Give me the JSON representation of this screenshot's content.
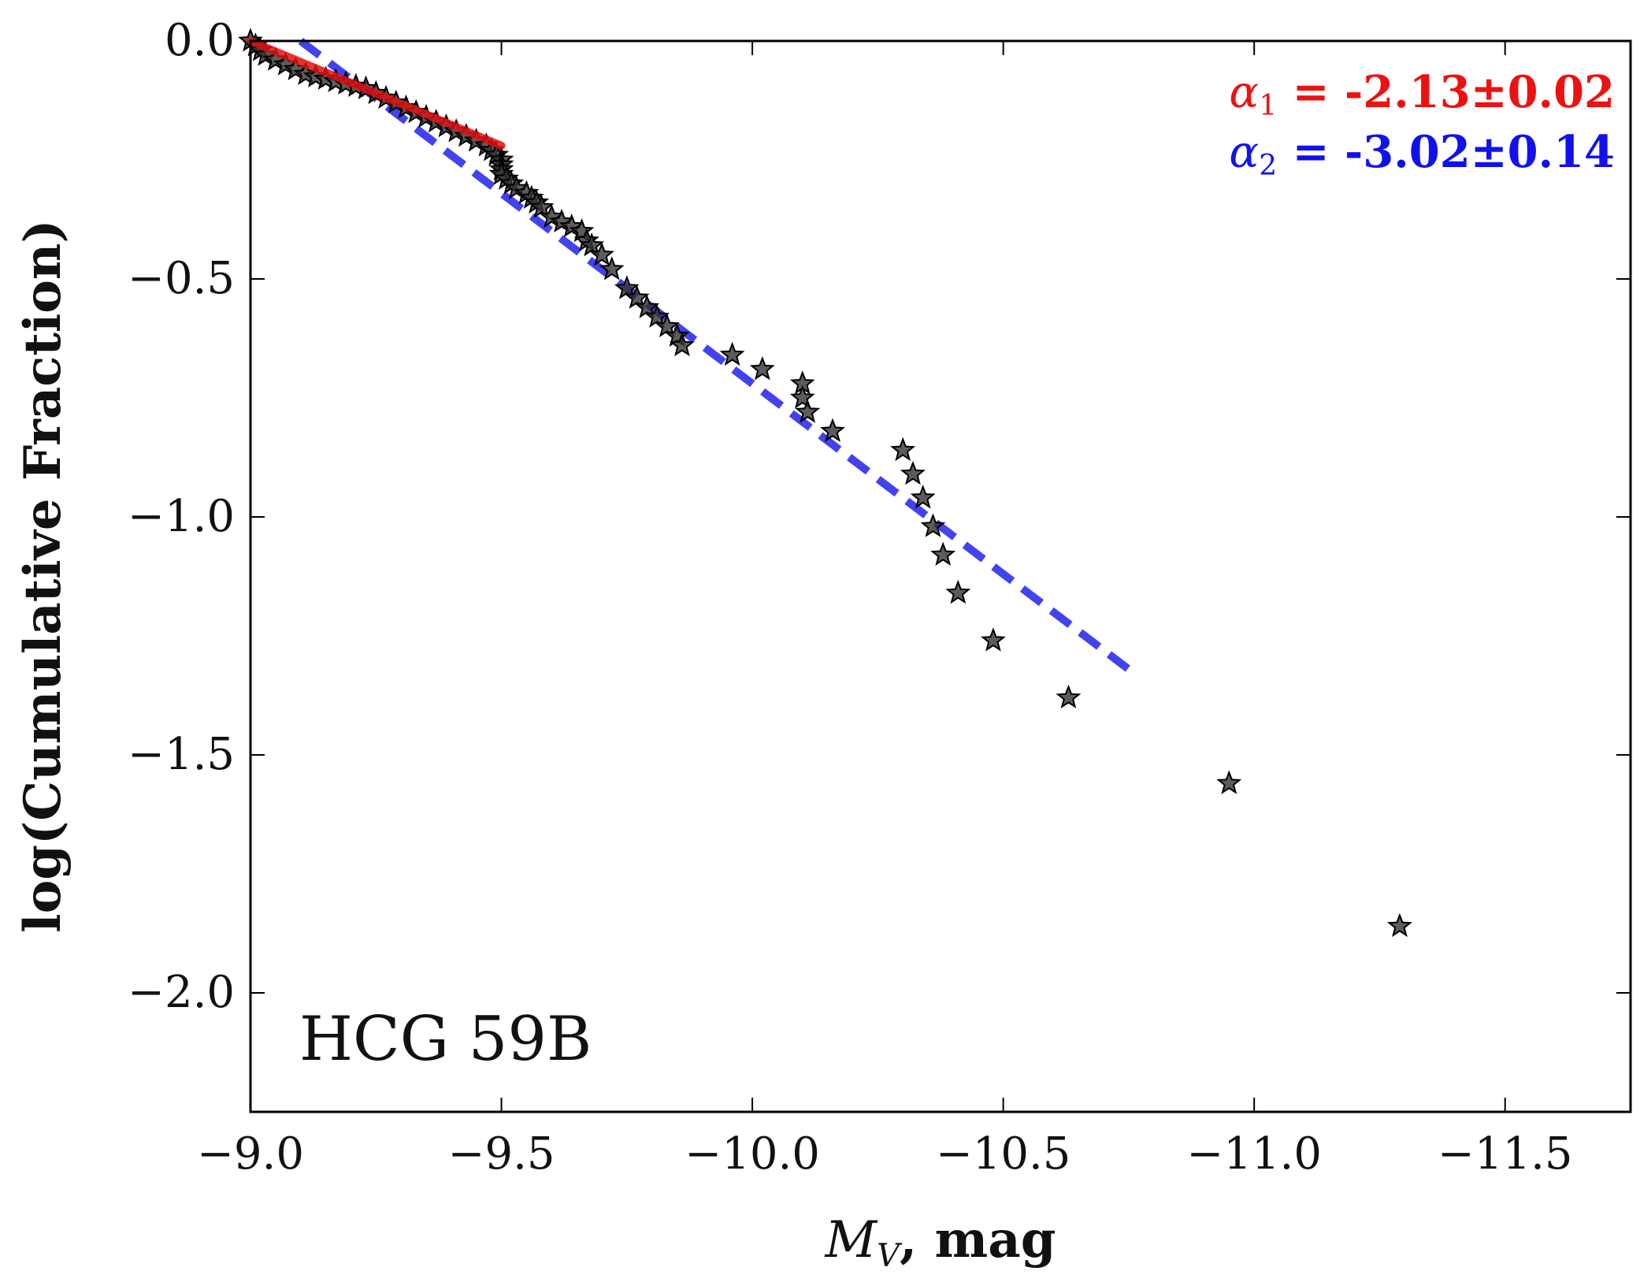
{
  "chart_data": {
    "type": "scatter",
    "xlabel_math": "M",
    "xlabel_sub": "V",
    "xlabel_rest": ", mag",
    "ylabel": "log(Cumulative Fraction)",
    "xlim": [
      -9.0,
      -11.75
    ],
    "ylim": [
      -2.25,
      0.0
    ],
    "xticks": [
      -9.0,
      -9.5,
      -10.0,
      -10.5,
      -11.0,
      -11.5
    ],
    "xtick_labels": [
      "−9.0",
      "−9.5",
      "−10.0",
      "−10.5",
      "−11.0",
      "−11.5"
    ],
    "yticks": [
      0.0,
      -0.5,
      -1.0,
      -1.5,
      -2.0
    ],
    "ytick_labels": [
      "0.0",
      "−0.5",
      "−1.0",
      "−1.5",
      "−2.0"
    ],
    "panel_label": "HCG 59B",
    "series": [
      {
        "name": "cumulative fraction",
        "marker": "star",
        "color": "#333333",
        "x": [
          -9.0,
          -9.01,
          -9.02,
          -9.03,
          -9.05,
          -9.07,
          -9.09,
          -9.11,
          -9.13,
          -9.15,
          -9.17,
          -9.19,
          -9.21,
          -9.23,
          -9.25,
          -9.27,
          -9.29,
          -9.31,
          -9.33,
          -9.35,
          -9.37,
          -9.39,
          -9.41,
          -9.43,
          -9.45,
          -9.47,
          -9.48,
          -9.49,
          -9.5,
          -9.5,
          -9.5,
          -9.5,
          -9.51,
          -9.52,
          -9.53,
          -9.55,
          -9.56,
          -9.57,
          -9.58,
          -9.6,
          -9.62,
          -9.64,
          -9.66,
          -9.67,
          -9.68,
          -9.7,
          -9.72,
          -9.75,
          -9.77,
          -9.79,
          -9.81,
          -9.83,
          -9.85,
          -9.86,
          -9.96,
          -10.02,
          -10.1,
          -10.1,
          -10.11,
          -10.16,
          -10.3,
          -10.32,
          -10.34,
          -10.36,
          -10.38,
          -10.41,
          -10.48,
          -10.63,
          -10.95,
          -11.29
        ],
        "y": [
          0.0,
          -0.01,
          -0.02,
          -0.03,
          -0.04,
          -0.05,
          -0.06,
          -0.07,
          -0.075,
          -0.08,
          -0.085,
          -0.09,
          -0.095,
          -0.1,
          -0.11,
          -0.12,
          -0.13,
          -0.14,
          -0.15,
          -0.16,
          -0.17,
          -0.18,
          -0.19,
          -0.2,
          -0.21,
          -0.22,
          -0.23,
          -0.24,
          -0.25,
          -0.26,
          -0.27,
          -0.28,
          -0.29,
          -0.3,
          -0.31,
          -0.32,
          -0.33,
          -0.34,
          -0.35,
          -0.37,
          -0.38,
          -0.39,
          -0.4,
          -0.42,
          -0.43,
          -0.45,
          -0.48,
          -0.52,
          -0.54,
          -0.56,
          -0.58,
          -0.6,
          -0.62,
          -0.64,
          -0.66,
          -0.69,
          -0.72,
          -0.75,
          -0.78,
          -0.82,
          -0.86,
          -0.91,
          -0.96,
          -1.02,
          -1.08,
          -1.16,
          -1.26,
          -1.38,
          -1.56,
          -1.86
        ]
      },
      {
        "name": "fit 1",
        "style": "solid",
        "color": "#dd1111",
        "x": [
          -9.0,
          -9.5
        ],
        "y": [
          0.0,
          -0.22
        ]
      },
      {
        "name": "fit 2",
        "style": "dashed",
        "color": "#2222ee",
        "x": [
          -9.1,
          -10.75
        ],
        "y": [
          0.0,
          -1.32
        ]
      }
    ],
    "annotations": [
      {
        "symbol": "α",
        "sub": "1",
        "text": " = -2.13±0.02",
        "color": "#ee1111"
      },
      {
        "symbol": "α",
        "sub": "2",
        "text": " = -3.02±0.14",
        "color": "#1111ee"
      }
    ]
  }
}
